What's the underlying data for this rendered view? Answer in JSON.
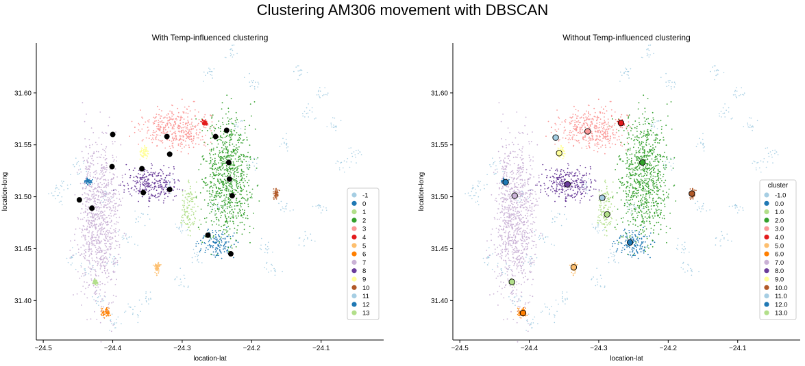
{
  "figure": {
    "suptitle": "Clustering AM306 movement with DBSCAN"
  },
  "chart_data": [
    {
      "type": "scatter",
      "title": "With Temp-influenced clustering",
      "xlabel": "location-lat",
      "ylabel": "location-long",
      "xlim": [
        -24.51,
        -24.01
      ],
      "ylim": [
        31.362,
        31.648
      ],
      "xticks": [
        -24.5,
        -24.4,
        -24.3,
        -24.2,
        -24.1
      ],
      "xtick_labels": [
        "−24.5",
        "−24.4",
        "−24.3",
        "−24.2",
        "−24.1"
      ],
      "yticks": [
        31.4,
        31.45,
        31.5,
        31.55,
        31.6
      ],
      "ytick_labels": [
        "31.40",
        "31.45",
        "31.50",
        "31.55",
        "31.60"
      ],
      "grid": false,
      "legend": {
        "placement": "lower-right",
        "title": "",
        "labels": [
          "-1",
          "0",
          "1",
          "2",
          "3",
          "4",
          "5",
          "6",
          "7",
          "8",
          "9",
          "10",
          "11",
          "12",
          "13"
        ]
      },
      "palette": [
        "#a6cee3",
        "#1f78b4",
        "#b2df8a",
        "#33a02c",
        "#fb9a99",
        "#e31a1c",
        "#fdbf6f",
        "#ff7f00",
        "#cab2d6",
        "#6a3d9a",
        "#ffff99",
        "#b15928",
        "#a6cee3",
        "#1f78b4",
        "#b2df8a"
      ],
      "point_clouds": [
        {
          "cluster": "-1",
          "approx_points": [
            [
              -24.45,
              31.53
            ],
            [
              -24.47,
              31.51
            ],
            [
              -24.38,
              31.46
            ],
            [
              -24.4,
              31.44
            ],
            [
              -24.35,
              31.4
            ],
            [
              -24.3,
              31.42
            ],
            [
              -24.28,
              31.44
            ],
            [
              -24.3,
              31.47
            ],
            [
              -24.25,
              31.49
            ],
            [
              -24.2,
              31.53
            ],
            [
              -24.15,
              31.55
            ],
            [
              -24.12,
              31.58
            ],
            [
              -24.13,
              31.62
            ],
            [
              -24.1,
              31.6
            ],
            [
              -24.08,
              31.57
            ],
            [
              -24.05,
              31.54
            ],
            [
              -24.15,
              31.49
            ],
            [
              -24.12,
              31.46
            ],
            [
              -24.18,
              31.45
            ],
            [
              -24.22,
              31.57
            ],
            [
              -24.26,
              31.62
            ],
            [
              -24.23,
              31.64
            ],
            [
              -24.2,
              31.61
            ],
            [
              -24.32,
              31.51
            ],
            [
              -24.36,
              31.48
            ],
            [
              -24.44,
              31.43
            ],
            [
              -24.42,
              31.4
            ],
            [
              -24.4,
              31.38
            ],
            [
              -24.37,
              31.39
            ],
            [
              -24.46,
              31.44
            ],
            [
              -24.48,
              31.5
            ],
            [
              -24.41,
              31.5
            ],
            [
              -24.1,
              31.49
            ],
            [
              -24.07,
              31.53
            ],
            [
              -24.17,
              31.43
            ]
          ]
        },
        {
          "cluster": "0",
          "center": [
            -24.25,
            31.455
          ],
          "spread": [
            0.025,
            0.014
          ]
        },
        {
          "cluster": "1",
          "center": [
            -24.29,
            31.49
          ],
          "spread": [
            0.012,
            0.025
          ]
        },
        {
          "cluster": "2",
          "center": [
            -24.235,
            31.52
          ],
          "spread": [
            0.035,
            0.06
          ]
        },
        {
          "cluster": "3",
          "center": [
            -24.31,
            31.565
          ],
          "spread": [
            0.05,
            0.02
          ]
        },
        {
          "cluster": "4",
          "center": [
            -24.268,
            31.571
          ],
          "spread": [
            0.004,
            0.003
          ]
        },
        {
          "cluster": "5",
          "center": [
            -24.336,
            31.432
          ],
          "spread": [
            0.004,
            0.006
          ]
        },
        {
          "cluster": "6",
          "center": [
            -24.41,
            31.389
          ],
          "spread": [
            0.007,
            0.004
          ]
        },
        {
          "cluster": "7",
          "center": [
            -24.42,
            31.48
          ],
          "spread": [
            0.03,
            0.08
          ]
        },
        {
          "cluster": "8",
          "center": [
            -24.345,
            31.512
          ],
          "spread": [
            0.04,
            0.018
          ]
        },
        {
          "cluster": "9",
          "center": [
            -24.355,
            31.542
          ],
          "spread": [
            0.008,
            0.006
          ]
        },
        {
          "cluster": "10",
          "center": [
            -24.165,
            31.503
          ],
          "spread": [
            0.004,
            0.005
          ]
        },
        {
          "cluster": "12",
          "center": [
            -24.435,
            31.515
          ],
          "spread": [
            0.005,
            0.003
          ]
        },
        {
          "cluster": "13",
          "center": [
            -24.425,
            31.418
          ],
          "spread": [
            0.003,
            0.003
          ]
        }
      ],
      "centroids": [
        [
          -24.448,
          31.497
        ],
        [
          -24.43,
          31.489
        ],
        [
          -24.4,
          31.56
        ],
        [
          -24.401,
          31.529
        ],
        [
          -24.358,
          31.527
        ],
        [
          -24.356,
          31.504
        ],
        [
          -24.322,
          31.558
        ],
        [
          -24.318,
          31.541
        ],
        [
          -24.318,
          31.507
        ],
        [
          -24.252,
          31.558
        ],
        [
          -24.236,
          31.564
        ],
        [
          -24.233,
          31.533
        ],
        [
          -24.232,
          31.517
        ],
        [
          -24.228,
          31.501
        ],
        [
          -24.263,
          31.463
        ],
        [
          -24.23,
          31.445
        ]
      ],
      "centroid_color": "#000000"
    },
    {
      "type": "scatter",
      "title": "Without Temp-influenced clustering",
      "xlabel": "location-lat",
      "ylabel": "location-long",
      "xlim": [
        -24.51,
        -24.01
      ],
      "ylim": [
        31.362,
        31.648
      ],
      "xticks": [
        -24.5,
        -24.4,
        -24.3,
        -24.2,
        -24.1
      ],
      "xtick_labels": [
        "−24.5",
        "−24.4",
        "−24.3",
        "−24.2",
        "−24.1"
      ],
      "yticks": [
        31.4,
        31.45,
        31.5,
        31.55,
        31.6
      ],
      "ytick_labels": [
        "31.40",
        "31.45",
        "31.50",
        "31.55",
        "31.60"
      ],
      "grid": false,
      "legend": {
        "placement": "lower-right",
        "title": "cluster",
        "labels": [
          "-1.0",
          "0.0",
          "1.0",
          "2.0",
          "3.0",
          "4.0",
          "5.0",
          "6.0",
          "7.0",
          "8.0",
          "9.0",
          "10.0",
          "11.0",
          "12.0",
          "13.0"
        ]
      },
      "palette": [
        "#a6cee3",
        "#1f78b4",
        "#b2df8a",
        "#33a02c",
        "#fb9a99",
        "#e31a1c",
        "#fdbf6f",
        "#ff7f00",
        "#cab2d6",
        "#6a3d9a",
        "#ffff99",
        "#b15928",
        "#a6cee3",
        "#1f78b4",
        "#b2df8a"
      ],
      "point_clouds": "same as the first plot",
      "centroids": [
        {
          "cluster": "0.0",
          "x": -24.255,
          "y": 31.456
        },
        {
          "cluster": "1.0",
          "x": -24.288,
          "y": 31.483
        },
        {
          "cluster": "2.0",
          "x": -24.237,
          "y": 31.533
        },
        {
          "cluster": "3.0",
          "x": -24.316,
          "y": 31.563
        },
        {
          "cluster": "4.0",
          "x": -24.268,
          "y": 31.571
        },
        {
          "cluster": "5.0",
          "x": -24.336,
          "y": 31.432
        },
        {
          "cluster": "6.0",
          "x": -24.409,
          "y": 31.388
        },
        {
          "cluster": "7.0",
          "x": -24.421,
          "y": 31.501
        },
        {
          "cluster": "8.0",
          "x": -24.345,
          "y": 31.512
        },
        {
          "cluster": "9.0",
          "x": -24.357,
          "y": 31.542
        },
        {
          "cluster": "10.0",
          "x": -24.166,
          "y": 31.503
        },
        {
          "cluster": "11.0",
          "x": -24.362,
          "y": 31.557
        },
        {
          "cluster": "11.0",
          "x": -24.295,
          "y": 31.499
        },
        {
          "cluster": "12.0",
          "x": -24.434,
          "y": 31.514
        },
        {
          "cluster": "13.0",
          "x": -24.425,
          "y": 31.418
        }
      ]
    }
  ]
}
